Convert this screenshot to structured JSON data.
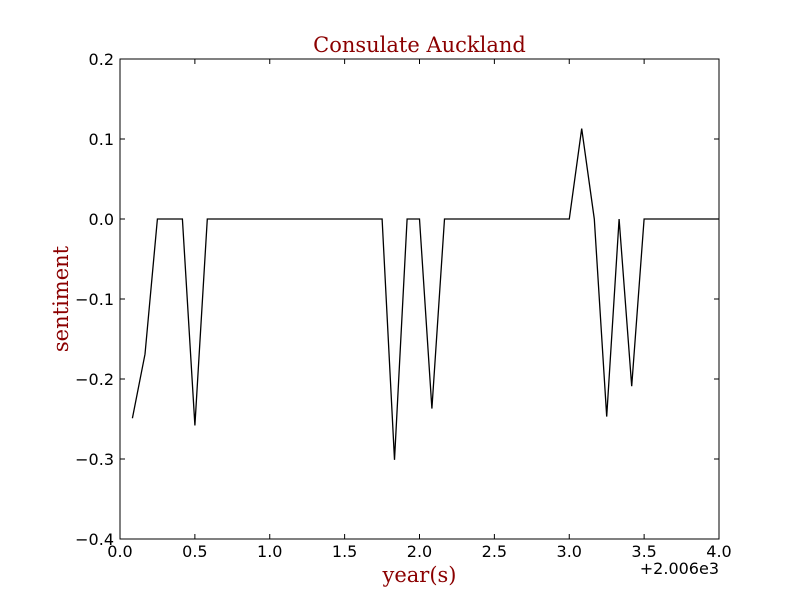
{
  "chart_data": {
    "type": "line",
    "title": "Consulate Auckland",
    "xlabel": "year(s)",
    "ylabel": "sentiment",
    "x_offset_label": "+2.006e3",
    "xlim": [
      0.0,
      4.0
    ],
    "ylim": [
      -0.4,
      0.2
    ],
    "x_ticks": [
      0.0,
      0.5,
      1.0,
      1.5,
      2.0,
      2.5,
      3.0,
      3.5,
      4.0
    ],
    "x_tick_labels": [
      "0.0",
      "0.5",
      "1.0",
      "1.5",
      "2.0",
      "2.5",
      "3.0",
      "3.5",
      "4.0"
    ],
    "y_ticks": [
      0.2,
      0.1,
      0.0,
      -0.1,
      -0.2,
      -0.3,
      -0.4
    ],
    "y_tick_labels": [
      "0.2",
      "0.1",
      "0.0",
      "−0.1",
      "−0.2",
      "−0.3",
      "−0.4"
    ],
    "grid": false,
    "line_color": "#000000",
    "title_color": "#8b0000",
    "series": [
      {
        "x": [
          0.083,
          0.167,
          0.25,
          0.333,
          0.417,
          0.5,
          0.583,
          0.667,
          0.75,
          0.833,
          0.917,
          1.0,
          1.083,
          1.167,
          1.25,
          1.333,
          1.417,
          1.5,
          1.583,
          1.667,
          1.75,
          1.833,
          1.917,
          2.0,
          2.083,
          2.167,
          2.25,
          2.333,
          2.417,
          2.5,
          2.583,
          2.667,
          2.75,
          2.833,
          2.917,
          3.0,
          3.083,
          3.167,
          3.25,
          3.333,
          3.417,
          3.5,
          3.583,
          3.667,
          3.75,
          3.833,
          3.917,
          4.0
        ],
        "y": [
          -0.249,
          -0.169,
          0.0,
          0.0,
          0.0,
          -0.258,
          0.0,
          0.0,
          0.0,
          0.0,
          0.0,
          0.0,
          0.0,
          0.0,
          0.0,
          0.0,
          0.0,
          0.0,
          0.0,
          0.0,
          0.0,
          -0.301,
          0.0,
          0.0,
          -0.237,
          0.0,
          0.0,
          0.0,
          0.0,
          0.0,
          0.0,
          0.0,
          0.0,
          0.0,
          0.0,
          0.0,
          0.113,
          0.0,
          -0.247,
          0.0,
          -0.209,
          0.0,
          0.0,
          0.0,
          0.0,
          0.0,
          0.0,
          0.0
        ]
      }
    ]
  }
}
